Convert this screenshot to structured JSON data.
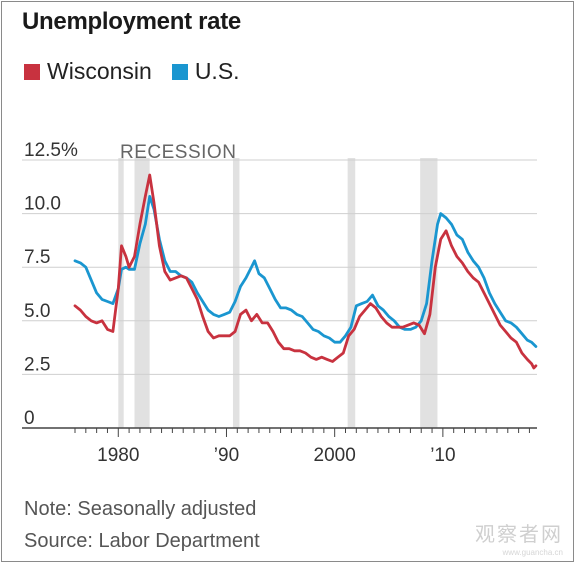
{
  "title": "Unemployment rate",
  "note": "Note: Seasonally adjusted",
  "source": "Source: Labor Department",
  "watermark": "观察者网",
  "watermark_url": "www.guancha.cn",
  "colors": {
    "wisconsin": "#c8323f",
    "us": "#1a96d0",
    "recession": "#e1e1e1",
    "grid": "#cfcfcf",
    "axis": "#444444"
  },
  "chart_data": {
    "type": "line",
    "title": "Unemployment rate",
    "ylim": [
      0,
      12.5
    ],
    "yticks": [
      0,
      2.5,
      5.0,
      7.5,
      10.0,
      12.5
    ],
    "ytick_labels": [
      "0",
      "2.5",
      "5.0",
      "7.5",
      "10.0",
      "12.5%"
    ],
    "xlim": [
      1976,
      2018.7
    ],
    "xtick_labels": [
      {
        "year": 1980,
        "label": "1980"
      },
      {
        "year": 1990,
        "label": "’90"
      },
      {
        "year": 2000,
        "label": "2000"
      },
      {
        "year": 2010,
        "label": "’10"
      }
    ],
    "recession_label": "RECESSION",
    "recessions": [
      [
        1980.0,
        1980.5
      ],
      [
        1981.5,
        1982.9
      ],
      [
        1990.6,
        1991.2
      ],
      [
        2001.2,
        2001.9
      ],
      [
        2007.9,
        2009.5
      ]
    ],
    "legend": [
      "Wisconsin",
      "U.S."
    ],
    "series": [
      {
        "name": "Wisconsin",
        "color": "#c8323f",
        "points": [
          [
            1976.0,
            5.7
          ],
          [
            1976.5,
            5.5
          ],
          [
            1977.0,
            5.2
          ],
          [
            1977.5,
            5.0
          ],
          [
            1978.0,
            4.9
          ],
          [
            1978.5,
            5.0
          ],
          [
            1979.0,
            4.6
          ],
          [
            1979.5,
            4.5
          ],
          [
            1980.0,
            6.5
          ],
          [
            1980.3,
            8.5
          ],
          [
            1980.7,
            8.0
          ],
          [
            1981.0,
            7.5
          ],
          [
            1981.5,
            8.0
          ],
          [
            1982.0,
            9.5
          ],
          [
            1982.5,
            10.8
          ],
          [
            1982.9,
            11.8
          ],
          [
            1983.3,
            10.5
          ],
          [
            1983.8,
            8.5
          ],
          [
            1984.3,
            7.3
          ],
          [
            1984.8,
            6.9
          ],
          [
            1985.3,
            7.0
          ],
          [
            1985.8,
            7.1
          ],
          [
            1986.3,
            7.0
          ],
          [
            1986.8,
            6.5
          ],
          [
            1987.3,
            6.0
          ],
          [
            1987.8,
            5.2
          ],
          [
            1988.3,
            4.5
          ],
          [
            1988.8,
            4.2
          ],
          [
            1989.3,
            4.3
          ],
          [
            1989.8,
            4.3
          ],
          [
            1990.3,
            4.3
          ],
          [
            1990.8,
            4.5
          ],
          [
            1991.3,
            5.3
          ],
          [
            1991.8,
            5.5
          ],
          [
            1992.3,
            5.0
          ],
          [
            1992.8,
            5.3
          ],
          [
            1993.3,
            4.9
          ],
          [
            1993.8,
            4.9
          ],
          [
            1994.3,
            4.5
          ],
          [
            1994.8,
            4.0
          ],
          [
            1995.3,
            3.7
          ],
          [
            1995.8,
            3.7
          ],
          [
            1996.3,
            3.6
          ],
          [
            1996.8,
            3.6
          ],
          [
            1997.3,
            3.5
          ],
          [
            1997.8,
            3.3
          ],
          [
            1998.3,
            3.2
          ],
          [
            1998.8,
            3.3
          ],
          [
            1999.3,
            3.2
          ],
          [
            1999.8,
            3.1
          ],
          [
            2000.3,
            3.3
          ],
          [
            2000.8,
            3.5
          ],
          [
            2001.3,
            4.3
          ],
          [
            2001.8,
            4.6
          ],
          [
            2002.3,
            5.2
          ],
          [
            2002.8,
            5.5
          ],
          [
            2003.3,
            5.8
          ],
          [
            2003.8,
            5.6
          ],
          [
            2004.3,
            5.2
          ],
          [
            2004.8,
            4.9
          ],
          [
            2005.3,
            4.7
          ],
          [
            2005.8,
            4.7
          ],
          [
            2006.3,
            4.7
          ],
          [
            2006.8,
            4.8
          ],
          [
            2007.3,
            4.9
          ],
          [
            2007.8,
            4.8
          ],
          [
            2008.3,
            4.4
          ],
          [
            2008.8,
            5.3
          ],
          [
            2009.3,
            7.5
          ],
          [
            2009.8,
            8.8
          ],
          [
            2010.3,
            9.2
          ],
          [
            2010.8,
            8.5
          ],
          [
            2011.3,
            8.0
          ],
          [
            2011.8,
            7.7
          ],
          [
            2012.3,
            7.3
          ],
          [
            2012.8,
            7.0
          ],
          [
            2013.3,
            6.8
          ],
          [
            2013.8,
            6.3
          ],
          [
            2014.3,
            5.8
          ],
          [
            2014.8,
            5.3
          ],
          [
            2015.3,
            4.8
          ],
          [
            2015.8,
            4.5
          ],
          [
            2016.3,
            4.2
          ],
          [
            2016.8,
            4.0
          ],
          [
            2017.3,
            3.5
          ],
          [
            2017.8,
            3.2
          ],
          [
            2018.2,
            3.0
          ],
          [
            2018.4,
            2.8
          ],
          [
            2018.6,
            2.9
          ]
        ]
      },
      {
        "name": "U.S.",
        "color": "#1a96d0",
        "points": [
          [
            1976.0,
            7.8
          ],
          [
            1976.5,
            7.7
          ],
          [
            1977.0,
            7.5
          ],
          [
            1977.5,
            6.9
          ],
          [
            1978.0,
            6.3
          ],
          [
            1978.5,
            6.0
          ],
          [
            1979.0,
            5.9
          ],
          [
            1979.5,
            5.8
          ],
          [
            1980.0,
            6.5
          ],
          [
            1980.3,
            7.4
          ],
          [
            1980.7,
            7.5
          ],
          [
            1981.0,
            7.4
          ],
          [
            1981.5,
            7.4
          ],
          [
            1982.0,
            8.6
          ],
          [
            1982.5,
            9.5
          ],
          [
            1982.9,
            10.8
          ],
          [
            1983.3,
            10.2
          ],
          [
            1983.8,
            8.8
          ],
          [
            1984.3,
            7.8
          ],
          [
            1984.8,
            7.3
          ],
          [
            1985.3,
            7.3
          ],
          [
            1985.8,
            7.1
          ],
          [
            1986.3,
            7.0
          ],
          [
            1986.8,
            6.8
          ],
          [
            1987.3,
            6.3
          ],
          [
            1987.8,
            5.9
          ],
          [
            1988.3,
            5.5
          ],
          [
            1988.8,
            5.3
          ],
          [
            1989.3,
            5.2
          ],
          [
            1989.8,
            5.3
          ],
          [
            1990.3,
            5.4
          ],
          [
            1990.8,
            5.9
          ],
          [
            1991.3,
            6.6
          ],
          [
            1991.8,
            7.0
          ],
          [
            1992.3,
            7.5
          ],
          [
            1992.6,
            7.8
          ],
          [
            1993.0,
            7.2
          ],
          [
            1993.5,
            7.0
          ],
          [
            1994.0,
            6.5
          ],
          [
            1994.5,
            6.0
          ],
          [
            1995.0,
            5.6
          ],
          [
            1995.5,
            5.6
          ],
          [
            1996.0,
            5.5
          ],
          [
            1996.5,
            5.3
          ],
          [
            1997.0,
            5.2
          ],
          [
            1997.5,
            4.9
          ],
          [
            1998.0,
            4.6
          ],
          [
            1998.5,
            4.5
          ],
          [
            1999.0,
            4.3
          ],
          [
            1999.5,
            4.2
          ],
          [
            2000.0,
            4.0
          ],
          [
            2000.5,
            4.0
          ],
          [
            2001.0,
            4.3
          ],
          [
            2001.5,
            4.7
          ],
          [
            2002.0,
            5.7
          ],
          [
            2002.5,
            5.8
          ],
          [
            2003.0,
            5.9
          ],
          [
            2003.5,
            6.2
          ],
          [
            2004.0,
            5.7
          ],
          [
            2004.5,
            5.5
          ],
          [
            2005.0,
            5.2
          ],
          [
            2005.5,
            5.0
          ],
          [
            2006.0,
            4.7
          ],
          [
            2006.5,
            4.6
          ],
          [
            2007.0,
            4.6
          ],
          [
            2007.5,
            4.7
          ],
          [
            2008.0,
            5.0
          ],
          [
            2008.5,
            5.8
          ],
          [
            2009.0,
            7.8
          ],
          [
            2009.5,
            9.5
          ],
          [
            2009.8,
            10.0
          ],
          [
            2010.3,
            9.8
          ],
          [
            2010.8,
            9.5
          ],
          [
            2011.3,
            9.0
          ],
          [
            2011.8,
            8.8
          ],
          [
            2012.3,
            8.2
          ],
          [
            2012.8,
            7.8
          ],
          [
            2013.3,
            7.5
          ],
          [
            2013.8,
            7.0
          ],
          [
            2014.3,
            6.3
          ],
          [
            2014.8,
            5.8
          ],
          [
            2015.3,
            5.4
          ],
          [
            2015.8,
            5.0
          ],
          [
            2016.3,
            4.9
          ],
          [
            2016.8,
            4.7
          ],
          [
            2017.3,
            4.4
          ],
          [
            2017.8,
            4.1
          ],
          [
            2018.2,
            4.0
          ],
          [
            2018.6,
            3.8
          ]
        ]
      }
    ]
  }
}
